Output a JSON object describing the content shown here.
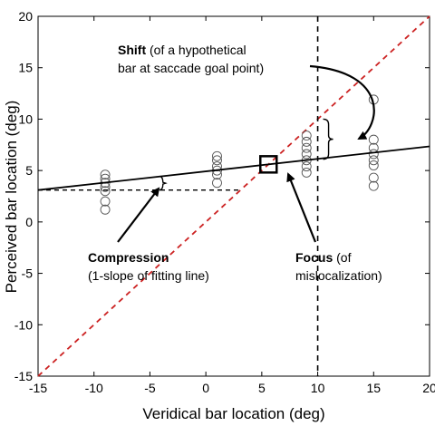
{
  "chart_data": {
    "type": "scatter",
    "xlabel": "Veridical bar location (deg)",
    "ylabel": "Perceived bar location (deg)",
    "xlim": [
      -15,
      20
    ],
    "ylim": [
      -15,
      20
    ],
    "xticks": [
      "-15",
      "-10",
      "-5",
      "0",
      "5",
      "10",
      "15",
      "20"
    ],
    "yticks": [
      "-15",
      "-10",
      "-5",
      "0",
      "5",
      "10",
      "15",
      "20"
    ],
    "grid": false,
    "points": [
      {
        "x": -9,
        "y": 1.2
      },
      {
        "x": -9,
        "y": 2.0
      },
      {
        "x": -9,
        "y": 3.0
      },
      {
        "x": -9,
        "y": 3.4
      },
      {
        "x": -9,
        "y": 3.8
      },
      {
        "x": -9,
        "y": 4.2
      },
      {
        "x": -9,
        "y": 4.6
      },
      {
        "x": 1,
        "y": 3.8
      },
      {
        "x": 1,
        "y": 4.6
      },
      {
        "x": 1,
        "y": 5.0
      },
      {
        "x": 1,
        "y": 5.4
      },
      {
        "x": 1,
        "y": 6.0
      },
      {
        "x": 1,
        "y": 6.4
      },
      {
        "x": 9,
        "y": 4.8
      },
      {
        "x": 9,
        "y": 5.4
      },
      {
        "x": 9,
        "y": 6.0
      },
      {
        "x": 9,
        "y": 6.6
      },
      {
        "x": 9,
        "y": 7.2
      },
      {
        "x": 9,
        "y": 7.8
      },
      {
        "x": 9,
        "y": 8.4
      },
      {
        "x": 15,
        "y": 3.5
      },
      {
        "x": 15,
        "y": 4.3
      },
      {
        "x": 15,
        "y": 5.5
      },
      {
        "x": 15,
        "y": 6.0
      },
      {
        "x": 15,
        "y": 6.6
      },
      {
        "x": 15,
        "y": 7.2
      },
      {
        "x": 15,
        "y": 8.0
      },
      {
        "x": 15,
        "y": 11.9
      }
    ],
    "fit_line": {
      "intercept": 4.92,
      "slope": 0.1214
    },
    "identity_line": {
      "color": "#cc2222",
      "style": "dashed"
    },
    "saccade_goal_x": 10,
    "focus_point": {
      "x": 5.6,
      "y": 5.6
    },
    "compression_level_y": 3.1,
    "compression_end_x": 3.1,
    "shift_bracket": {
      "x": 10,
      "y_low": 6.1,
      "y_high": 10
    }
  },
  "annotations": {
    "shift_bold": "Shift",
    "shift_rest": " (of a hypothetical",
    "shift_line2": "bar at saccade goal point)",
    "compression_bold": "Compression",
    "compression_line2": "(1-slope of fitting line)",
    "focus_bold": "Focus",
    "focus_rest": " (of",
    "focus_line2": "mislocalization)"
  }
}
